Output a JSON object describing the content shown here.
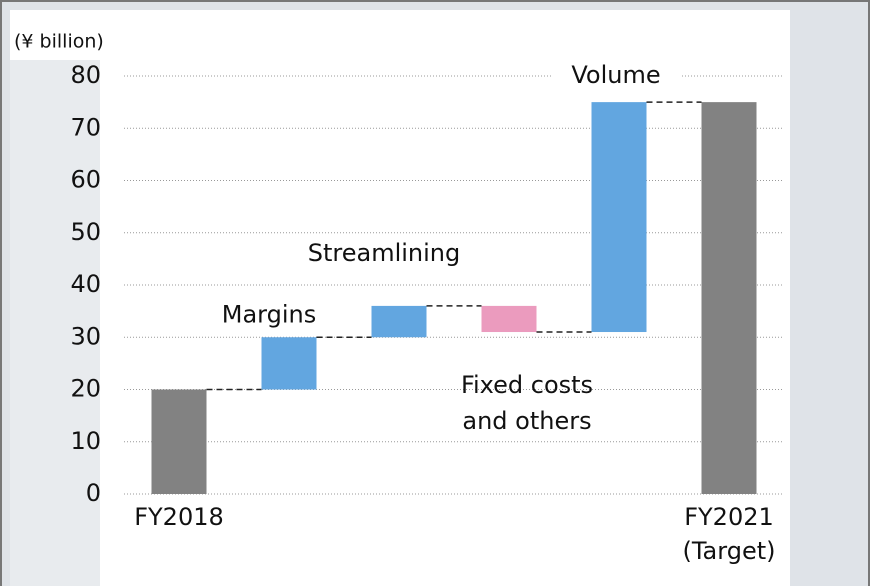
{
  "chart_data": {
    "type": "waterfall",
    "y_label": "(¥ billion)",
    "categories": [
      "FY2018",
      null,
      null,
      null,
      null,
      "FY2021\n(Target)"
    ],
    "bar_labels": [
      null,
      "Margins",
      "Streamlining",
      "Fixed costs\nand others",
      "Volume",
      null
    ],
    "values": [
      20,
      10,
      6,
      -5,
      44,
      75
    ],
    "totals": [
      true,
      false,
      false,
      false,
      false,
      true
    ],
    "colors": {
      "total": "#828282",
      "increase": "#62a6e0",
      "decrease": "#eb9bbe"
    },
    "ylim": [
      0,
      80
    ],
    "yticks": [
      0,
      10,
      20,
      30,
      40,
      50,
      60,
      70,
      80
    ],
    "grid": true
  }
}
